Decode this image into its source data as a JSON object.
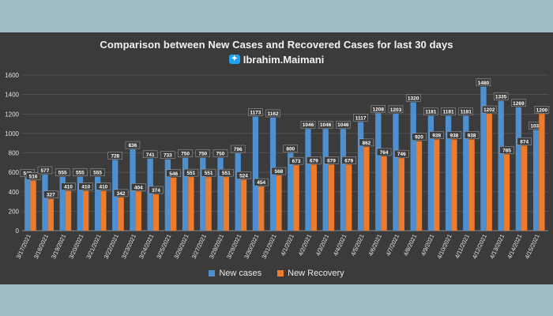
{
  "chart_data": {
    "type": "bar",
    "title": "Comparison between New Cases and Recovered Cases for last 30 days",
    "subtitle": "Ibrahim.Maimani",
    "subtitle_icon": "twitter-icon",
    "ylim": [
      0,
      1600
    ],
    "yticks": [
      0,
      200,
      400,
      600,
      800,
      1000,
      1200,
      1400,
      1600
    ],
    "grid": true,
    "legend_position": "bottom",
    "categories": [
      "3/17/2021",
      "3/18/2021",
      "3/19/2021",
      "3/20/2021",
      "3/21/2021",
      "3/22/2021",
      "3/23/2021",
      "3/24/2021",
      "3/25/2021",
      "3/26/2021",
      "3/27/2021",
      "3/28/2021",
      "3/29/2021",
      "3/30/2021",
      "3/31/2021",
      "4/1/2021",
      "4/2/2021",
      "4/3/2021",
      "4/4/2021",
      "4/5/2021",
      "4/6/2021",
      "4/7/2021",
      "4/8/2021",
      "4/9/2021",
      "4/10/2021",
      "4/11/2021",
      "4/12/2021",
      "4/13/2021",
      "4/14/2021",
      "4/15/2021"
    ],
    "series": [
      {
        "name": "New cases",
        "color": "#4e8fd0",
        "values": [
          548,
          577,
          555,
          555,
          555,
          728,
          836,
          741,
          733,
          750,
          750,
          750,
          796,
          1173,
          1162,
          800,
          1046,
          1046,
          1046,
          1117,
          1208,
          1203,
          1320,
          1181,
          1181,
          1181,
          1480,
          1335,
          1269,
          1035
        ]
      },
      {
        "name": "New Recovery",
        "color": "#ee7a2b",
        "values": [
          516,
          327,
          410,
          410,
          410,
          342,
          404,
          374,
          546,
          551,
          551,
          551,
          524,
          454,
          568,
          673,
          679,
          679,
          679,
          862,
          764,
          746,
          920,
          938,
          938,
          938,
          1202,
          785,
          874,
          1200
        ]
      }
    ]
  }
}
